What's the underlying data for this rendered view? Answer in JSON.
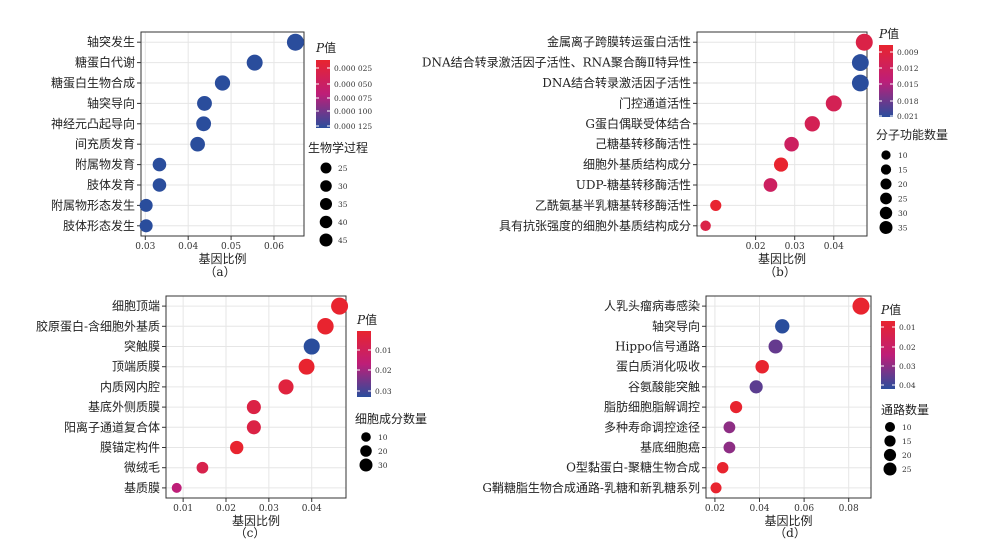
{
  "chart_data": [
    {
      "type": "scatter",
      "subtype": "bubble",
      "caption": "（a）",
      "xlabel": "基因比例",
      "xlim": [
        0.029,
        0.067
      ],
      "xticks": [
        0.03,
        0.04,
        0.05,
        0.06
      ],
      "xtick_labels": [
        "0.03",
        "0.04",
        "0.05",
        "0.06"
      ],
      "categories": [
        "轴突发生",
        "糖蛋白代谢",
        "糖蛋白生物合成",
        "轴突导向",
        "神经元凸起导向",
        "间充质发育",
        "附属物发育",
        "肢体发育",
        "附属物形态发生",
        "肢体形态发生"
      ],
      "x": [
        0.065,
        0.0555,
        0.048,
        0.0438,
        0.0436,
        0.0422,
        0.0333,
        0.0333,
        0.0302,
        0.0302
      ],
      "size": [
        49,
        41,
        36,
        33,
        33,
        32,
        25,
        25,
        22,
        22
      ],
      "p_value": [
        3e-05,
        7e-05,
        0.00012,
        6e-05,
        6e-05,
        8e-05,
        7e-05,
        7e-05,
        6e-05,
        5e-05
      ],
      "grid": true,
      "legend_position": "right",
      "legend_color": {
        "title": "P值",
        "title_italic": "P",
        "title_rest": "值",
        "ticks": [
          "0.000 025",
          "0.000 050",
          "0.000 075",
          "0.000 100",
          "0.000 125"
        ],
        "low": "#e8242f",
        "high": "#2a4d9c"
      },
      "legend_size": {
        "title": "生物学过程",
        "values": [
          "25",
          "30",
          "35",
          "40",
          "45"
        ]
      }
    },
    {
      "type": "scatter",
      "subtype": "bubble",
      "caption": "（b）",
      "xlabel": "基因比例",
      "xlim": [
        0.005,
        0.0485
      ],
      "xticks": [
        0.02,
        0.03,
        0.04
      ],
      "xtick_labels": [
        "0.02",
        "0.03",
        "0.04"
      ],
      "categories": [
        "金属离子跨膜转运蛋白活性",
        "DNA结合转录激活因子活性、RNA聚合酶Ⅱ特异性",
        "DNA结合转录激活因子活性",
        "门控通道活性",
        "G蛋白偶联受体结合",
        "己糖基转移酶活性",
        "细胞外基质结构成分",
        "UDP-糖基转移酶活性",
        "乙酰氨基半乳糖基转移酶活性",
        "具有抗张强度的细胞外基质结构成分"
      ],
      "x": [
        0.0478,
        0.0468,
        0.0468,
        0.04,
        0.0345,
        0.0292,
        0.0265,
        0.0238,
        0.0098,
        0.0072
      ],
      "size": [
        38,
        37,
        37,
        32,
        28,
        24,
        22,
        20,
        10,
        8
      ],
      "p_value": [
        0.011,
        0.021,
        0.021,
        0.012,
        0.012,
        0.013,
        0.009,
        0.013,
        0.009,
        0.011
      ],
      "grid": true,
      "legend_position": "right",
      "legend_color": {
        "title": "P值",
        "title_italic": "P",
        "title_rest": "值",
        "ticks": [
          "0.009",
          "0.012",
          "0.015",
          "0.018",
          "0.021"
        ],
        "low": "#e8242f",
        "high": "#2a4d9c"
      },
      "legend_size": {
        "title": "分子功能数量",
        "values": [
          "10",
          "15",
          "20",
          "25",
          "30",
          "35"
        ]
      }
    },
    {
      "type": "scatter",
      "subtype": "bubble",
      "caption": "（c）",
      "xlabel": "基因比例",
      "xlim": [
        0.006,
        0.048
      ],
      "xticks": [
        0.01,
        0.02,
        0.03,
        0.04
      ],
      "xtick_labels": [
        "0.01",
        "0.02",
        "0.03",
        "0.04"
      ],
      "categories": [
        "细胞顶端",
        "胶原蛋白-含细胞外基质",
        "突触膜",
        "顶端质膜",
        "内质网内腔",
        "基底外侧质膜",
        "阳离子通道复合体",
        "膜锚定构件",
        "微绒毛",
        "基质膜"
      ],
      "x": [
        0.0465,
        0.0432,
        0.04,
        0.0388,
        0.034,
        0.0265,
        0.0265,
        0.0225,
        0.0145,
        0.0085
      ],
      "size": [
        35,
        32,
        30,
        29,
        25,
        20,
        20,
        17,
        11,
        6
      ],
      "p_value": [
        0.004,
        0.006,
        0.033,
        0.005,
        0.012,
        0.013,
        0.013,
        0.01,
        0.014,
        0.02
      ],
      "grid": true,
      "legend_position": "right",
      "legend_color": {
        "title": "P值",
        "title_italic": "P",
        "title_rest": "值",
        "ticks": [
          "0.01",
          "0.02",
          "0.03"
        ],
        "low": "#e8242f",
        "high": "#2a4d9c"
      },
      "legend_size": {
        "title": "细胞成分数量",
        "values": [
          "10",
          "20",
          "30"
        ]
      }
    },
    {
      "type": "scatter",
      "subtype": "bubble",
      "caption": "（d）",
      "xlabel": "基因比例",
      "xlim": [
        0.016,
        0.09
      ],
      "xticks": [
        0.02,
        0.04,
        0.06,
        0.08
      ],
      "xtick_labels": [
        "0.02",
        "0.04",
        "0.06",
        "0.08"
      ],
      "categories": [
        "人乳头瘤病毒感染",
        "轴突导向",
        "Hippo信号通路",
        "蛋白质消化吸收",
        "谷氨酸能突触",
        "脂肪细胞脂解调控",
        "多种寿命调控途径",
        "基底细胞癌",
        "O型黏蛋白-聚糖生物合成",
        "G鞘糖脂生物合成通路-乳糖和新乳糖系列"
      ],
      "x": [
        0.0855,
        0.0502,
        0.0472,
        0.0412,
        0.0385,
        0.0295,
        0.0265,
        0.0265,
        0.0235,
        0.0205
      ],
      "size": [
        28,
        17,
        16,
        14,
        13,
        10,
        9,
        9,
        8,
        7
      ],
      "p_value": [
        0.003,
        0.044,
        0.034,
        0.005,
        0.035,
        0.004,
        0.03,
        0.03,
        0.01,
        0.008
      ],
      "grid": true,
      "legend_position": "right",
      "legend_color": {
        "title": "P值",
        "title_italic": "P",
        "title_rest": "值",
        "ticks": [
          "0.01",
          "0.02",
          "0.03",
          "0.04"
        ],
        "low": "#e8242f",
        "high": "#2a4d9c"
      },
      "legend_size": {
        "title": "通路数量",
        "values": [
          "10",
          "15",
          "20",
          "25"
        ]
      }
    }
  ]
}
